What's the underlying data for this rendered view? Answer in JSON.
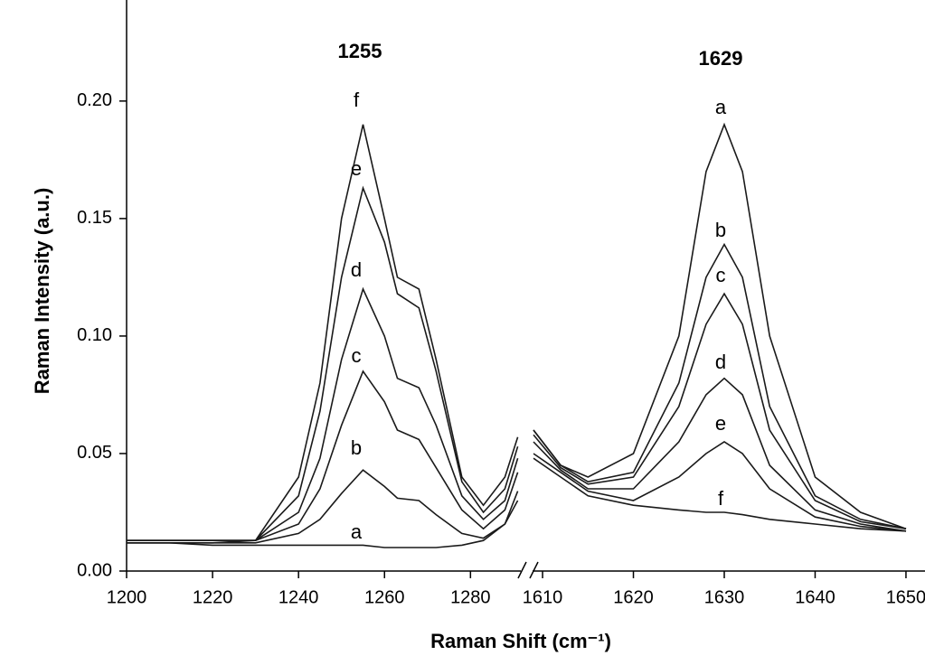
{
  "chart_data": {
    "type": "line",
    "ylabel": "Raman Intensity (a.u.)",
    "xlabel": "Raman Shift (cm⁻¹)",
    "color": "#1a1a1a",
    "ylim": [
      0,
      0.243
    ],
    "yticks": [
      {
        "value": 0,
        "label": "0.00"
      },
      0.05,
      {
        "value": 0.1,
        "label": "0.10"
      },
      0.15,
      {
        "value": 0.2,
        "label": "0.20"
      }
    ],
    "annotations": [
      "1255",
      "1629"
    ],
    "segments": [
      {
        "xlim": [
          1200,
          1291.5
        ],
        "xticks": [
          1200,
          1220,
          1240,
          1260,
          1280
        ],
        "x": [
          1200,
          1210,
          1220,
          1230,
          1240,
          1245,
          1250,
          1255,
          1260,
          1263,
          1268,
          1272,
          1278,
          1283,
          1288,
          1291
        ],
        "series": [
          {
            "name": "a",
            "values": [
              0.012,
              0.012,
              0.011,
              0.011,
              0.011,
              0.011,
              0.011,
              0.011,
              0.01,
              0.01,
              0.01,
              0.01,
              0.011,
              0.013,
              0.02,
              0.03
            ]
          },
          {
            "name": "b",
            "values": [
              0.012,
              0.012,
              0.012,
              0.012,
              0.016,
              0.022,
              0.033,
              0.043,
              0.036,
              0.031,
              0.03,
              0.024,
              0.016,
              0.014,
              0.02,
              0.034
            ]
          },
          {
            "name": "c",
            "values": [
              0.012,
              0.012,
              0.012,
              0.013,
              0.02,
              0.035,
              0.062,
              0.085,
              0.072,
              0.06,
              0.056,
              0.044,
              0.026,
              0.018,
              0.026,
              0.042
            ]
          },
          {
            "name": "d",
            "values": [
              0.013,
              0.013,
              0.013,
              0.013,
              0.025,
              0.048,
              0.09,
              0.12,
              0.1,
              0.082,
              0.078,
              0.062,
              0.032,
              0.022,
              0.03,
              0.048
            ]
          },
          {
            "name": "e",
            "values": [
              0.013,
              0.013,
              0.013,
              0.013,
              0.032,
              0.068,
              0.125,
              0.163,
              0.14,
              0.118,
              0.112,
              0.085,
              0.038,
              0.025,
              0.035,
              0.053
            ]
          },
          {
            "name": "f",
            "values": [
              0.013,
              0.013,
              0.013,
              0.013,
              0.04,
              0.08,
              0.15,
              0.19,
              0.15,
              0.125,
              0.12,
              0.09,
              0.04,
              0.028,
              0.04,
              0.057
            ]
          }
        ]
      },
      {
        "xlim": [
          1609,
          1651
        ],
        "xticks": [
          1610,
          1620,
          1630,
          1640,
          1650
        ],
        "x": [
          1609,
          1612,
          1615,
          1620,
          1625,
          1628,
          1630,
          1632,
          1635,
          1640,
          1645,
          1650
        ],
        "series": [
          {
            "name": "a",
            "values": [
              0.06,
              0.045,
              0.04,
              0.05,
              0.1,
              0.17,
              0.19,
              0.17,
              0.1,
              0.04,
              0.025,
              0.018
            ]
          },
          {
            "name": "b",
            "values": [
              0.06,
              0.045,
              0.038,
              0.042,
              0.08,
              0.125,
              0.139,
              0.125,
              0.07,
              0.032,
              0.022,
              0.018
            ]
          },
          {
            "name": "c",
            "values": [
              0.058,
              0.044,
              0.037,
              0.04,
              0.07,
              0.105,
              0.118,
              0.105,
              0.06,
              0.03,
              0.021,
              0.018
            ]
          },
          {
            "name": "d",
            "values": [
              0.055,
              0.043,
              0.035,
              0.035,
              0.055,
              0.075,
              0.082,
              0.075,
              0.045,
              0.026,
              0.02,
              0.017
            ]
          },
          {
            "name": "e",
            "values": [
              0.05,
              0.042,
              0.034,
              0.03,
              0.04,
              0.05,
              0.055,
              0.05,
              0.035,
              0.023,
              0.019,
              0.017
            ]
          },
          {
            "name": "f",
            "values": [
              0.048,
              0.04,
              0.032,
              0.028,
              0.026,
              0.025,
              0.025,
              0.024,
              0.022,
              0.02,
              0.018,
              0.017
            ]
          }
        ]
      }
    ]
  }
}
